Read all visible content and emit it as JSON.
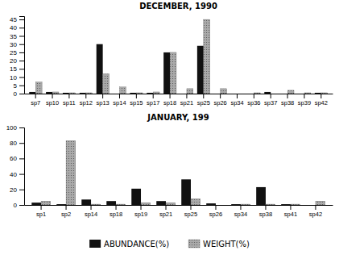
{
  "chart_data": [
    {
      "type": "bar",
      "title": "DECEMBER, 1990",
      "categories": [
        "sp7",
        "sp10",
        "sp11",
        "sp12",
        "sp13",
        "sp14",
        "sp15",
        "sp17",
        "sp18",
        "sp21",
        "sp25",
        "sp26",
        "sp34",
        "sp36",
        "sp37",
        "sp38",
        "sp39",
        "sp42"
      ],
      "series": [
        {
          "color": "#111111",
          "values": [
            1,
            1,
            0.5,
            0.5,
            30,
            0,
            0.5,
            0.5,
            25,
            0,
            29,
            0,
            0,
            0,
            1,
            0,
            0,
            0.5
          ]
        },
        {
          "color": "#aaaaaa",
          "values": [
            7,
            1,
            0.5,
            0.5,
            12,
            4,
            0.5,
            1,
            25,
            3,
            45,
            3,
            0,
            0.5,
            0,
            2,
            0.5,
            0.5
          ]
        }
      ],
      "ylim": [
        0,
        47
      ],
      "yticks": [
        0,
        5,
        10,
        15,
        20,
        25,
        30,
        35,
        40,
        45
      ],
      "grid": false
    },
    {
      "type": "bar",
      "title": "JANUARY, 199",
      "categories": [
        "sp1",
        "sp2",
        "sp14",
        "sp18",
        "sp19",
        "sp21",
        "sp25",
        "sp26",
        "sp34",
        "sp38",
        "sp41",
        "sp42"
      ],
      "series": [
        {
          "name": "ABUNDANCE(%)",
          "color": "#111111",
          "values": [
            3,
            1,
            7,
            5,
            21,
            5,
            33,
            2,
            1,
            23,
            1,
            0
          ]
        },
        {
          "name": "WEIGHT(%)",
          "color": "#aaaaaa",
          "values": [
            5,
            83,
            1,
            1,
            3,
            3,
            8,
            0,
            1,
            1,
            1,
            5
          ]
        }
      ],
      "ylim": [
        0,
        100
      ],
      "yticks": [
        0,
        20,
        40,
        60,
        80,
        100
      ],
      "grid": false,
      "legend": "bottom"
    }
  ]
}
